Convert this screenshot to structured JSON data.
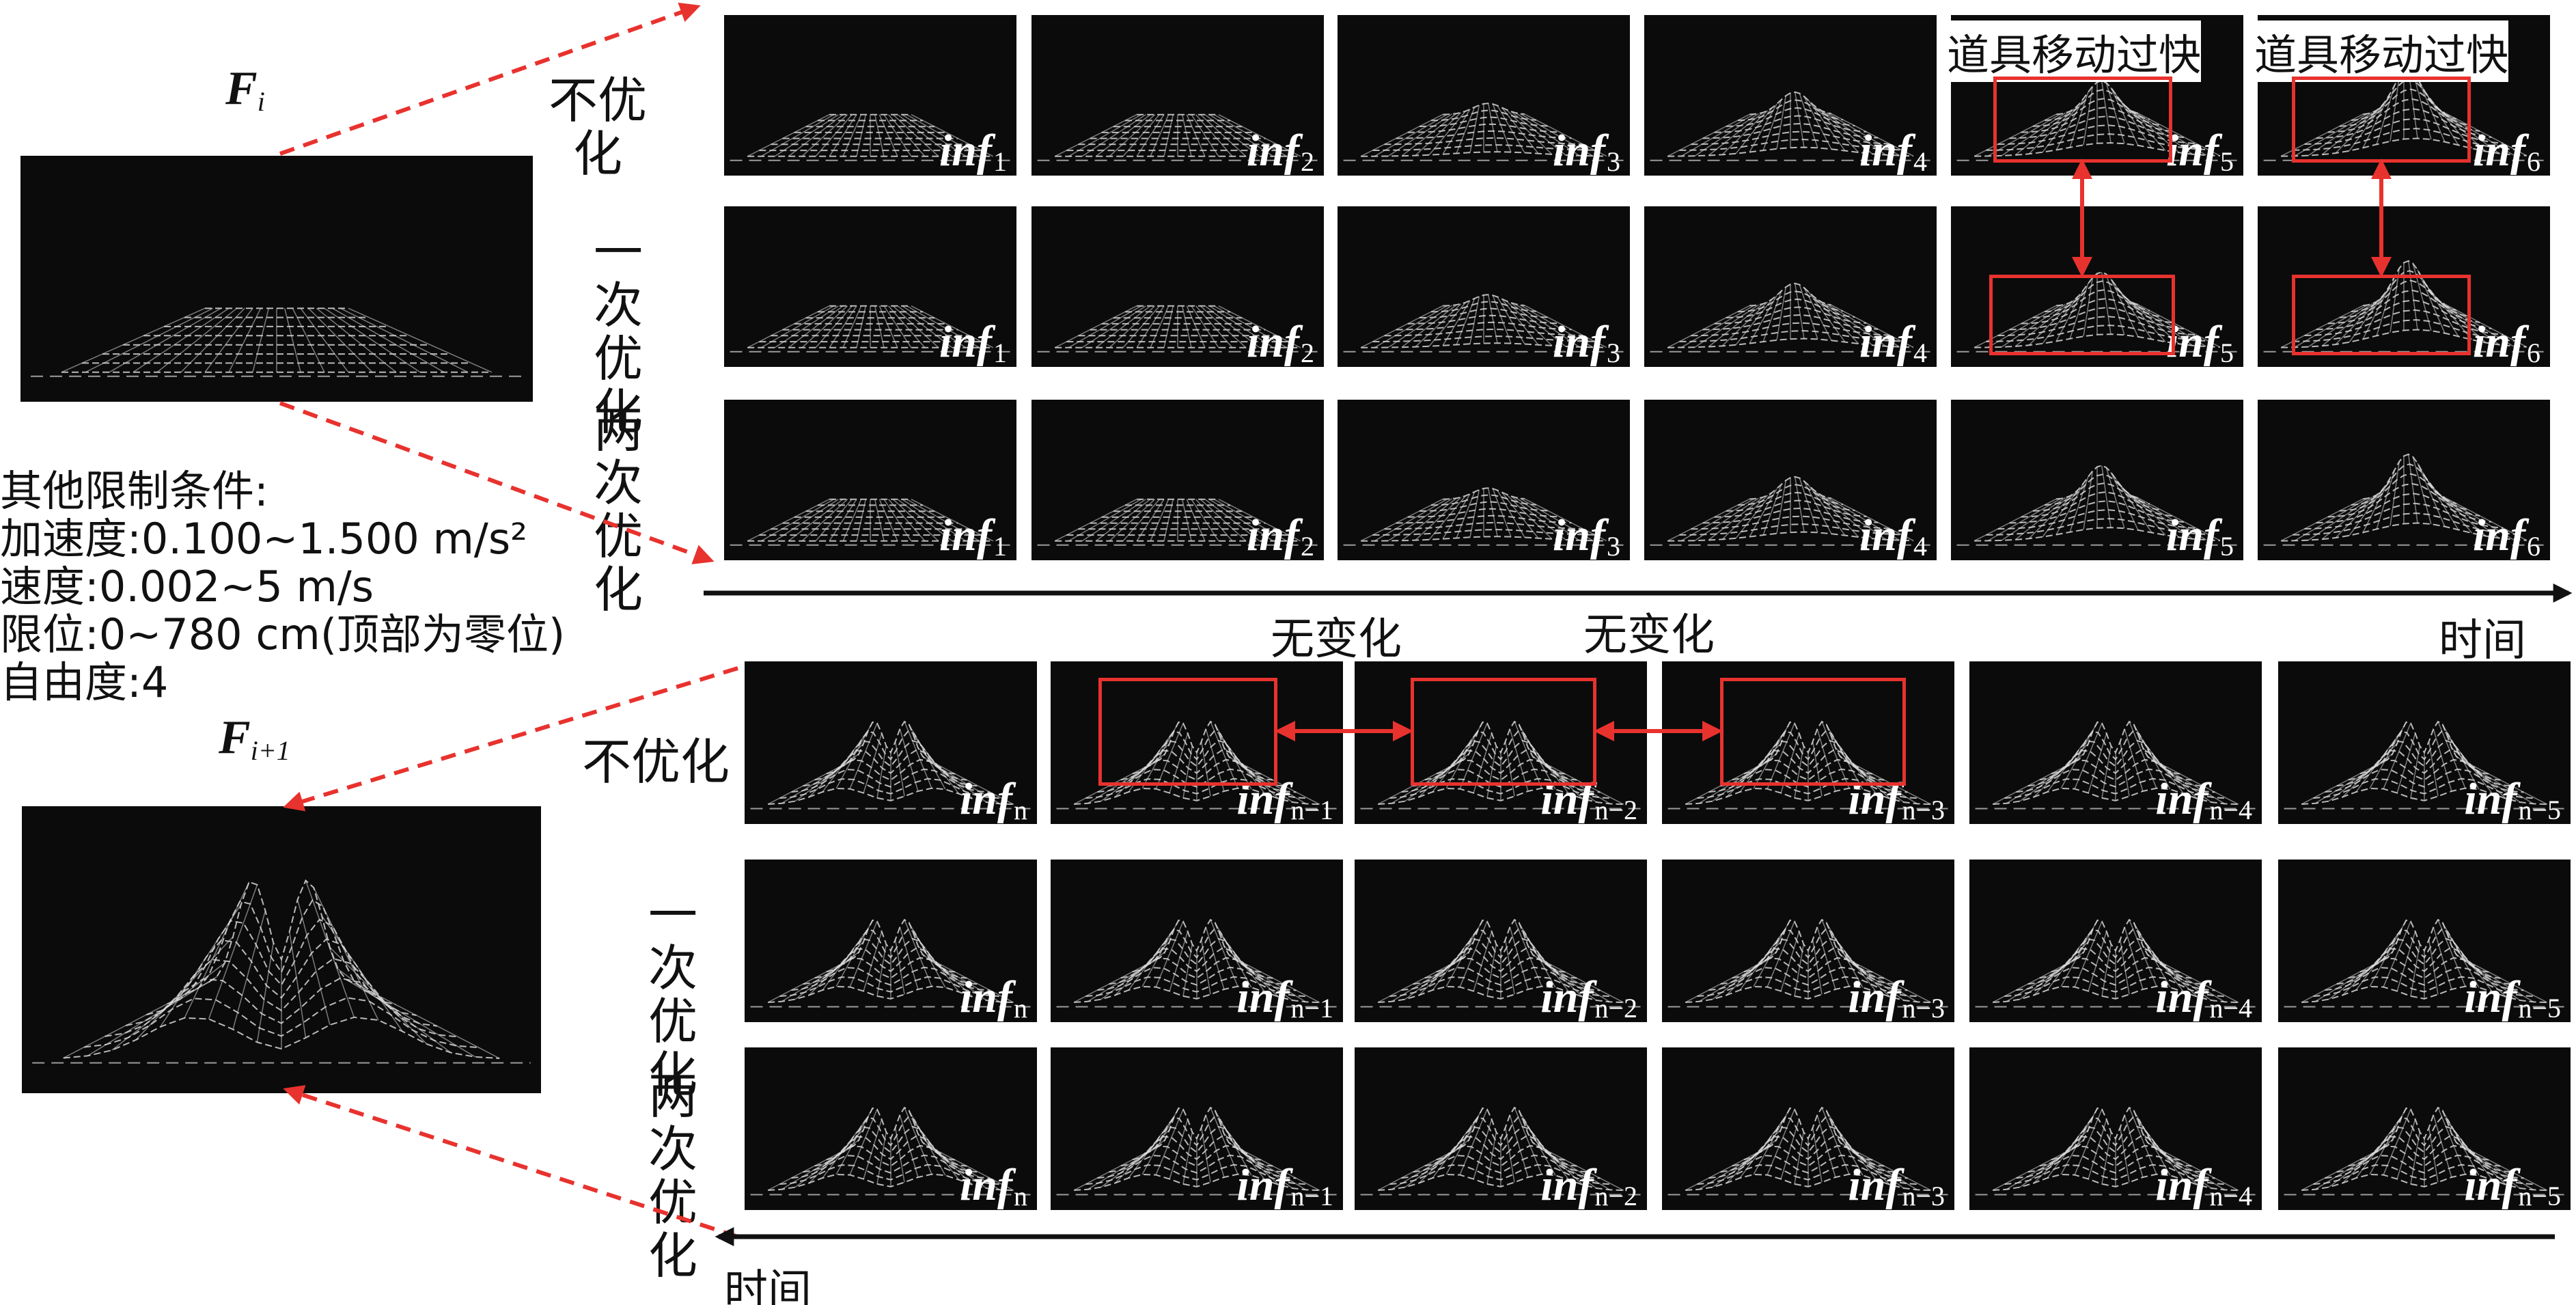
{
  "fi_label": "F",
  "fi_sub": "i",
  "fi1_label": "F",
  "fi1_sub": "i+1",
  "constraints": {
    "title": "其他限制条件:",
    "acceleration": "加速度:0.100~1.500 m/s²",
    "speed": "速度:0.002~5 m/s",
    "limit": "限位:0~780 cm(顶部为零位)",
    "dof": "自由度:4"
  },
  "top_block": {
    "rows": [
      {
        "label": "不优化",
        "labels": [
          "1",
          "2",
          "3",
          "4",
          "5",
          "6"
        ]
      },
      {
        "label": "一次优化",
        "labels": [
          "1",
          "2",
          "3",
          "4",
          "5",
          "6"
        ]
      },
      {
        "label": "两次优化",
        "labels": [
          "1",
          "2",
          "3",
          "4",
          "5",
          "6"
        ]
      }
    ],
    "warning": "道具移动过快",
    "time_label": "时间"
  },
  "bottom_block": {
    "rows": [
      {
        "label": "不优化",
        "labels": [
          "n",
          "n−1",
          "n−2",
          "n−3",
          "n−4",
          "n−5"
        ]
      },
      {
        "label": "一次优化",
        "labels": [
          "n",
          "n−1",
          "n−2",
          "n−3",
          "n−4",
          "n−5"
        ]
      },
      {
        "label": "两次优化",
        "labels": [
          "n",
          "n−1",
          "n−2",
          "n−3",
          "n−4",
          "n−5"
        ]
      }
    ],
    "nochange": "无变化",
    "time_label": "时间"
  },
  "frame_prefix": "inf",
  "colors": {
    "accent": "#e8322e",
    "frame_bg": "#0b0b0b",
    "mesh": "#d8d8d8"
  }
}
